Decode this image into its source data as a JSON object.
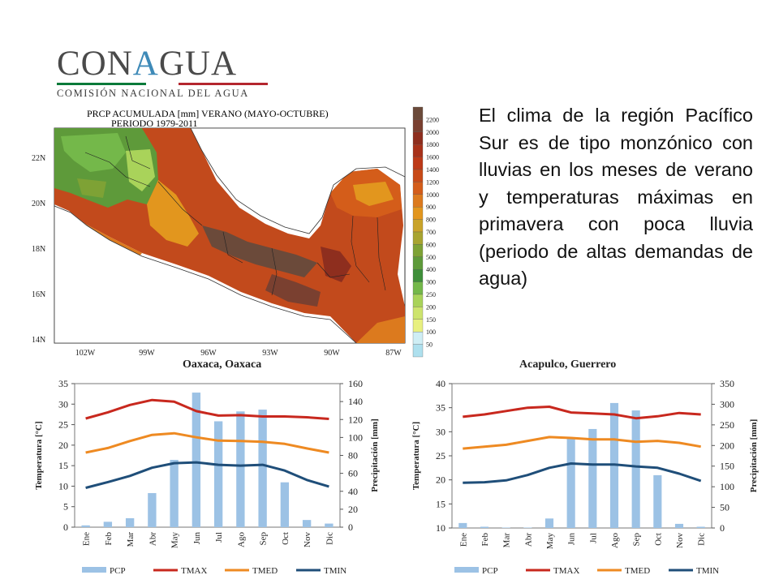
{
  "logo": {
    "main_prefix": "CON",
    "main_accent": "A",
    "main_suffix": "GUA",
    "subtitle": "COMISIÓN NACIONAL DEL AGUA"
  },
  "description": "El clima de la región Pacífico Sur es de tipo monzónico con lluvias en los meses de verano y temperaturas máximas en primavera con poca lluvia (periodo de altas demandas de agua)",
  "map": {
    "title_line1": "PRCP ACUMULADA [mm] VERANO (MAYO-OCTUBRE)",
    "title_line2": "PERIODO 1979-2011",
    "lat_labels": [
      "22N",
      "20N",
      "18N",
      "16N",
      "14N"
    ],
    "lon_labels": [
      "102W",
      "99W",
      "96W",
      "93W",
      "90W",
      "87W"
    ],
    "colorbar_labels": [
      "2200",
      "2000",
      "1800",
      "1600",
      "1400",
      "1200",
      "1000",
      "900",
      "800",
      "700",
      "600",
      "500",
      "400",
      "300",
      "250",
      "200",
      "150",
      "100",
      "50"
    ],
    "colorbar_colors": [
      "#6b4a3a",
      "#7a4030",
      "#8e2e1e",
      "#a8321a",
      "#bd3a18",
      "#c84a18",
      "#d45d1a",
      "#dc7a1e",
      "#e2961e",
      "#c9a42a",
      "#a8a430",
      "#7ea235",
      "#5e9a3a",
      "#3f8f3a",
      "#74b84a",
      "#a9d35a",
      "#cde46e",
      "#e8f080",
      "#cfeef5",
      "#aee0ee"
    ],
    "colors": {
      "ocean": "#ffffff",
      "border": "#222222"
    }
  },
  "chart_data": [
    {
      "type": "bar+line",
      "title": "Oaxaca, Oaxaca",
      "categories": [
        "Ene",
        "Feb",
        "Mar",
        "Abr",
        "May",
        "Jun",
        "Jul",
        "Ago",
        "Sep",
        "Oct",
        "Nov",
        "Dic"
      ],
      "ylabel_left": "Temperatura [°C]",
      "ylabel_right": "Precipitación [mm]",
      "ylim_left": [
        0,
        35
      ],
      "ylim_right": [
        0,
        160
      ],
      "ticks_left": [
        0,
        5,
        10,
        15,
        20,
        25,
        30,
        35
      ],
      "ticks_right": [
        0,
        20,
        40,
        60,
        80,
        100,
        120,
        140,
        160
      ],
      "bar_series": {
        "name": "PCP",
        "axis": "right",
        "color": "#9cc2e5",
        "values": [
          2,
          6,
          10,
          38,
          75,
          150,
          118,
          129,
          131,
          50,
          8,
          4
        ]
      },
      "line_series": [
        {
          "name": "TMAX",
          "color": "#c8281e",
          "values": [
            26.5,
            28.0,
            29.8,
            31.0,
            30.6,
            28.3,
            27.2,
            27.3,
            27.0,
            27.0,
            26.8,
            26.4
          ]
        },
        {
          "name": "TMED",
          "color": "#ee8a22",
          "values": [
            18.2,
            19.3,
            21.0,
            22.5,
            22.9,
            21.9,
            21.1,
            21.0,
            20.8,
            20.3,
            19.2,
            18.2
          ]
        },
        {
          "name": "TMIN",
          "color": "#1f4e79",
          "values": [
            9.6,
            11.0,
            12.5,
            14.5,
            15.6,
            15.8,
            15.2,
            15.0,
            15.2,
            13.8,
            11.5,
            9.9
          ]
        }
      ],
      "legend": [
        "PCP",
        "TMAX",
        "TMED",
        "TMIN"
      ],
      "legend_position": "bottom"
    },
    {
      "type": "bar+line",
      "title": "Acapulco, Guerrero",
      "categories": [
        "Ene",
        "Feb",
        "Mar",
        "Abr",
        "May",
        "Jun",
        "Jul",
        "Ago",
        "Sep",
        "Oct",
        "Nov",
        "Dic"
      ],
      "ylabel_left": "Temperatura [°C]",
      "ylabel_right": "Precipitación [mm]",
      "ylim_left": [
        10,
        40
      ],
      "ylim_right": [
        0,
        350
      ],
      "ticks_left": [
        10,
        15,
        20,
        25,
        30,
        35,
        40
      ],
      "ticks_right": [
        0,
        50,
        100,
        150,
        200,
        250,
        300,
        350
      ],
      "bar_series": {
        "name": "PCP",
        "axis": "right",
        "color": "#9cc2e5",
        "values": [
          12,
          3,
          1,
          1,
          23,
          220,
          240,
          303,
          285,
          128,
          10,
          3
        ]
      },
      "line_series": [
        {
          "name": "TMAX",
          "color": "#c8281e",
          "values": [
            33.1,
            33.6,
            34.3,
            35.0,
            35.2,
            34.0,
            33.8,
            33.6,
            32.8,
            33.2,
            33.9,
            33.6
          ]
        },
        {
          "name": "TMED",
          "color": "#ee8a22",
          "values": [
            26.5,
            26.9,
            27.3,
            28.1,
            28.9,
            28.7,
            28.4,
            28.4,
            27.9,
            28.1,
            27.7,
            26.9
          ]
        },
        {
          "name": "TMIN",
          "color": "#1f4e79",
          "values": [
            19.4,
            19.5,
            19.9,
            21.0,
            22.5,
            23.4,
            23.2,
            23.2,
            22.8,
            22.5,
            21.3,
            19.8
          ]
        }
      ],
      "legend": [
        "PCP",
        "TMAX",
        "TMED",
        "TMIN"
      ],
      "legend_position": "bottom"
    }
  ]
}
